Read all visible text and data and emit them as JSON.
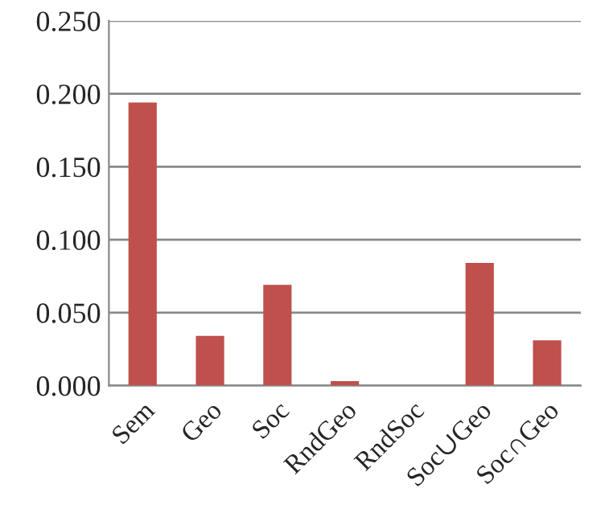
{
  "chart_data": {
    "type": "bar",
    "categories": [
      "Sem",
      "Geo",
      "Soc",
      "RndGeo",
      "RndSoc",
      "Soc∪Geo",
      "Soc∩Geo"
    ],
    "values": [
      0.194,
      0.034,
      0.069,
      0.003,
      0,
      0.084,
      0.031
    ],
    "color": "#c0504d",
    "ylim": [
      0,
      0.25
    ],
    "yticks": [
      {
        "value": 0,
        "label": "0.000"
      },
      {
        "value": 0.05,
        "label": "0.050"
      },
      {
        "value": 0.1,
        "label": "0.100"
      },
      {
        "value": 0.15,
        "label": "0.150"
      },
      {
        "value": 0.2,
        "label": "0.200"
      },
      {
        "value": 0.25,
        "label": "0.250"
      }
    ],
    "grid": "y"
  }
}
